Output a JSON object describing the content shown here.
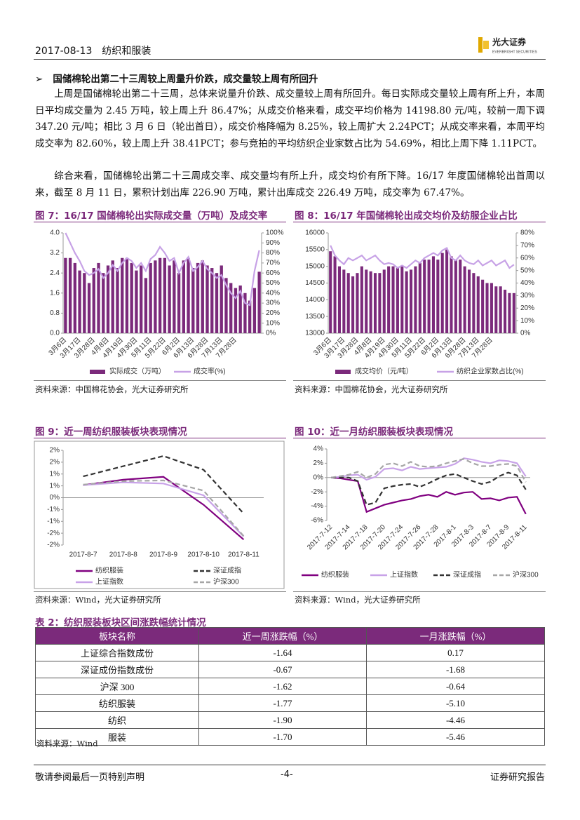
{
  "header": {
    "date": "2017-08-13",
    "sector": "纺织和服装",
    "logo_cn": "光大证券",
    "logo_en": "EVERBRIGHT SECURITIES"
  },
  "section": {
    "heading": "国储棉轮出第二十三周较上周量升价跌，成交量较上周有所回升",
    "paragraphs": [
      "上周是国储棉轮出第二十三周，总体来说量升价跌、成交量较上周有所回升。每日实际成交量较上周有所上升，本周日平均成交量为 2.45 万吨，较上周上升 86.47%；从成交价格来看，成交平均价格为 14198.80 元/吨，较前一周下调 347.20 元/吨；相比 3 月 6 日（轮出首日），成交价格降幅为 8.25%，较上周扩大 2.24PCT；从成交率来看，本周平均成交率为 82.60%，较上周上升 38.41PCT；参与竞拍的平均纺织企业家数占比为 54.69%，相比上周下降 1.11PCT。",
      "综合来看，国储棉轮出第二十三周成交率、成交量均有所上升，成交均价有所下降。16/17 年度国储棉轮出首周以来，截至 8 月 11 日，累积计划出库 226.90 万吨，累计出库成交 226.49 万吨，成交率为 67.47%。"
    ]
  },
  "chart_data": [
    {
      "type": "combo",
      "title": "图 7：16/17 国储棉轮出实际成交量（万吨）及成交率",
      "source": "资料来源：中国棉花协会，光大证券研究所",
      "categories": [
        "3月6日",
        null,
        null,
        "3月17日",
        null,
        null,
        "3月28日",
        null,
        null,
        "4月8日",
        null,
        null,
        "4月19日",
        null,
        null,
        "4月30日",
        null,
        null,
        "5月11日",
        null,
        null,
        "5月22日",
        null,
        null,
        "6月2日",
        null,
        null,
        "6月13日",
        null,
        null,
        "6月28日",
        null,
        null,
        "7月13日",
        null,
        null,
        "7月28日",
        null,
        null,
        null,
        null,
        null
      ],
      "ylim": [
        0,
        4
      ],
      "yticks": [
        {
          "value": 0,
          "label": "0.0"
        },
        0.8,
        1.6,
        2.4,
        3.2,
        {
          "value": 4,
          "label": "4.0"
        }
      ],
      "y2lim": [
        0,
        100
      ],
      "y2ticks": [
        {
          "value": 0,
          "label": "0%"
        },
        {
          "value": 10,
          "label": "10%"
        },
        {
          "value": 20,
          "label": "20%"
        },
        {
          "value": 30,
          "label": "30%"
        },
        {
          "value": 40,
          "label": "40%"
        },
        {
          "value": 50,
          "label": "50%"
        },
        {
          "value": 60,
          "label": "60%"
        },
        {
          "value": 70,
          "label": "70%"
        },
        {
          "value": 80,
          "label": "80%"
        },
        {
          "value": 90,
          "label": "90%"
        },
        {
          "value": 100,
          "label": "100%"
        }
      ],
      "series": [
        {
          "name": "实际成交（万吨）",
          "type": "bar",
          "color": "#7b2a7b",
          "values": [
            3.0,
            3.0,
            2.8,
            2.5,
            2.4,
            2.0,
            2.6,
            2.8,
            2.4,
            2.7,
            2.9,
            2.6,
            3.0,
            3.0,
            2.8,
            2.5,
            2.7,
            2.2,
            2.8,
            2.9,
            3.0,
            3.0,
            2.7,
            2.9,
            2.4,
            2.9,
            3.0,
            2.6,
            2.8,
            2.9,
            2.7,
            2.6,
            2.4,
            2.7,
            2.2,
            2.0,
            1.8,
            1.9,
            1.6,
            1.3,
            1.8,
            2.45
          ]
        },
        {
          "name": "成交率(%)",
          "type": "line",
          "axis": "y2",
          "color": "#c7a2e6",
          "values": [
            100,
            90,
            80,
            72,
            62,
            58,
            60,
            64,
            55,
            60,
            68,
            62,
            70,
            75,
            72,
            65,
            70,
            62,
            74,
            78,
            86,
            80,
            72,
            75,
            60,
            70,
            76,
            62,
            66,
            72,
            64,
            60,
            55,
            58,
            48,
            40,
            35,
            42,
            30,
            28,
            62,
            82.6
          ]
        }
      ]
    },
    {
      "type": "combo",
      "title": "图 8：16/17 年国储棉轮出成交均价及纺服企业占比",
      "source": "资料来源：中国棉花协会，光大证券研究所",
      "categories": [
        "3月6日",
        null,
        null,
        "3月17日",
        null,
        null,
        "3月28日",
        null,
        null,
        "4月8日",
        null,
        null,
        "4月19日",
        null,
        null,
        "4月30日",
        null,
        null,
        "5月11日",
        null,
        null,
        "5月22日",
        null,
        null,
        "6月2日",
        null,
        null,
        "6月13日",
        null,
        null,
        "6月28日",
        null,
        null,
        "7月13日",
        null,
        null,
        "7月28日",
        null,
        null,
        null,
        null,
        null
      ],
      "ylim": [
        13000,
        16000
      ],
      "yticks": [
        13000,
        13500,
        14000,
        14500,
        15000,
        15500,
        16000
      ],
      "y2lim": [
        0,
        80
      ],
      "y2ticks": [
        {
          "value": 0,
          "label": "0%"
        },
        {
          "value": 10,
          "label": "10%"
        },
        {
          "value": 20,
          "label": "20%"
        },
        {
          "value": 30,
          "label": "30%"
        },
        {
          "value": 40,
          "label": "40%"
        },
        {
          "value": 50,
          "label": "50%"
        },
        {
          "value": 60,
          "label": "60%"
        },
        {
          "value": 70,
          "label": "70%"
        },
        {
          "value": 80,
          "label": "80%"
        }
      ],
      "series": [
        {
          "name": "成交均价（元/吨）",
          "type": "bar",
          "color": "#7b2a7b",
          "values": [
            15450,
            15300,
            15000,
            14900,
            14800,
            14700,
            14800,
            15000,
            14900,
            14850,
            14800,
            14800,
            14900,
            15000,
            15000,
            14950,
            15000,
            14850,
            14900,
            15000,
            15100,
            15200,
            15200,
            15300,
            15200,
            15400,
            15500,
            15300,
            15200,
            15200,
            15000,
            14900,
            14800,
            14700,
            14600,
            14500,
            14500,
            14400,
            14400,
            14300,
            14200,
            14198.8
          ]
        },
        {
          "name": "纺织企业家数占比(%)",
          "type": "line",
          "axis": "y2",
          "color": "#c7a2e6",
          "values": [
            70,
            62,
            58,
            55,
            60,
            58,
            60,
            62,
            58,
            60,
            62,
            58,
            55,
            56,
            55,
            52,
            54,
            52,
            55,
            58,
            56,
            60,
            62,
            64,
            62,
            66,
            68,
            60,
            58,
            62,
            58,
            56,
            55,
            58,
            54,
            56,
            58,
            54,
            56,
            58,
            52,
            54.69
          ]
        }
      ]
    },
    {
      "type": "line",
      "title": "图 9：近一周纺织服装板块表现情况",
      "source": "资料来源：Wind，光大证券研究所",
      "categories": [
        "2017-8-7",
        "2017-8-8",
        "2017-8-9",
        "2017-8-10",
        "2017-8-11"
      ],
      "ylim": [
        -2,
        2
      ],
      "yticks": [
        {
          "value": 2,
          "label": "2%"
        },
        {
          "value": 1.5,
          "label": "2%"
        },
        {
          "value": 1,
          "label": "1%"
        },
        {
          "value": 0.5,
          "label": "1%"
        },
        {
          "value": 0,
          "label": "0%"
        },
        {
          "value": -0.5,
          "label": "-1%"
        },
        {
          "value": -1,
          "label": "-1%"
        },
        {
          "value": -1.5,
          "label": "-2%"
        },
        {
          "value": -2,
          "label": "-2%"
        }
      ],
      "series": [
        {
          "name": "纺织服装",
          "color": "#800080",
          "linestyle": "solid",
          "values": [
            0.53,
            0.76,
            0.88,
            -0.3,
            -1.77
          ]
        },
        {
          "name": "上证指数",
          "color": "#c8a2e8",
          "linestyle": "solid",
          "values": [
            0.53,
            0.65,
            0.6,
            0.1,
            -1.64
          ]
        },
        {
          "name": "深证成指",
          "color": "#333333",
          "linestyle": "dashed",
          "values": [
            0.9,
            1.33,
            1.76,
            1.18,
            -0.67
          ]
        },
        {
          "name": "沪深300",
          "color": "#a6a6a6",
          "linestyle": "dashed",
          "values": [
            0.55,
            0.7,
            0.73,
            0.3,
            -1.62
          ]
        }
      ]
    },
    {
      "type": "line",
      "title": "图 10：近一月纺织服装板块表现情况",
      "source": "资料来源：Wind，光大证券研究所",
      "categories": [
        "2017-7-12",
        null,
        "2017-7-14",
        null,
        "2017-7-18",
        null,
        "2017-7-20",
        null,
        "2017-7-24",
        null,
        "2017-7-26",
        null,
        "2017-7-28",
        null,
        "2017-8-1",
        null,
        "2017-8-3",
        null,
        "2017-8-7",
        null,
        "2017-8-9",
        null,
        "2017-8-11"
      ],
      "ylim": [
        -6,
        4
      ],
      "yticks": [
        {
          "value": 4,
          "label": "4%"
        },
        {
          "value": 2,
          "label": "2%"
        },
        {
          "value": 0,
          "label": "0%"
        },
        {
          "value": -2,
          "label": "-2%"
        },
        {
          "value": -4,
          "label": "-4%"
        },
        {
          "value": -6,
          "label": "-6%"
        }
      ],
      "series": [
        {
          "name": "纺织服装",
          "color": "#800080",
          "linestyle": "solid",
          "values": [
            0,
            -0.1,
            -0.3,
            -0.5,
            -4.8,
            -4.3,
            -3.8,
            -3.5,
            -3.2,
            -3.0,
            -2.6,
            -2.4,
            -2.7,
            -2.0,
            -2.4,
            -2.1,
            -2.0,
            -3.0,
            -2.9,
            -3.2,
            -2.8,
            -2.7,
            -5.1
          ]
        },
        {
          "name": "上证指数",
          "color": "#c8a2e8",
          "linestyle": "solid",
          "values": [
            0,
            0.1,
            0.3,
            0.4,
            -0.3,
            0.1,
            1.2,
            1.3,
            1.0,
            1.5,
            1.2,
            1.3,
            1.4,
            1.5,
            1.9,
            2.7,
            2.5,
            2.2,
            2.0,
            2.4,
            2.3,
            2.0,
            0.17
          ]
        },
        {
          "name": "深证成指",
          "color": "#333333",
          "linestyle": "dashed",
          "values": [
            0,
            0,
            0,
            -0.5,
            -3.8,
            -3.5,
            -1.5,
            -1.2,
            -1.0,
            -0.9,
            -1.3,
            -0.8,
            -0.2,
            0.3,
            0.5,
            0,
            -0.5,
            -0.9,
            -0.6,
            0.2,
            0.7,
            0.3,
            -1.68
          ]
        },
        {
          "name": "沪深300",
          "color": "#a6a6a6",
          "linestyle": "dashed",
          "values": [
            0,
            0.2,
            0.4,
            0.8,
            0,
            0.5,
            1.8,
            2.0,
            1.6,
            2.2,
            1.6,
            1.5,
            1.6,
            2.0,
            2.3,
            2.6,
            2.0,
            1.6,
            1.6,
            1.8,
            1.9,
            1.6,
            -0.64
          ]
        }
      ]
    }
  ],
  "table": {
    "title": "表 2：纺织服装板块区间涨跌幅统计情况",
    "columns": [
      "板块名称",
      "近一周涨跌幅（%）",
      "一月涨跌幅（%）"
    ],
    "rows": [
      [
        "上证综合指数成份",
        "-1.64",
        "0.17"
      ],
      [
        "深证成份指数成份",
        "-0.67",
        "-1.68"
      ],
      [
        "沪深 300",
        "-1.62",
        "-0.64"
      ],
      [
        "纺织服装",
        "-1.77",
        "-5.10"
      ],
      [
        "纺织",
        "-1.90",
        "-4.46"
      ],
      [
        "服装",
        "-1.70",
        "-5.46"
      ]
    ],
    "source": "资料来源：Wind"
  },
  "footer": {
    "left": "敬请参阅最后一页特别声明",
    "center": "-4-",
    "right": "证券研究报告"
  }
}
